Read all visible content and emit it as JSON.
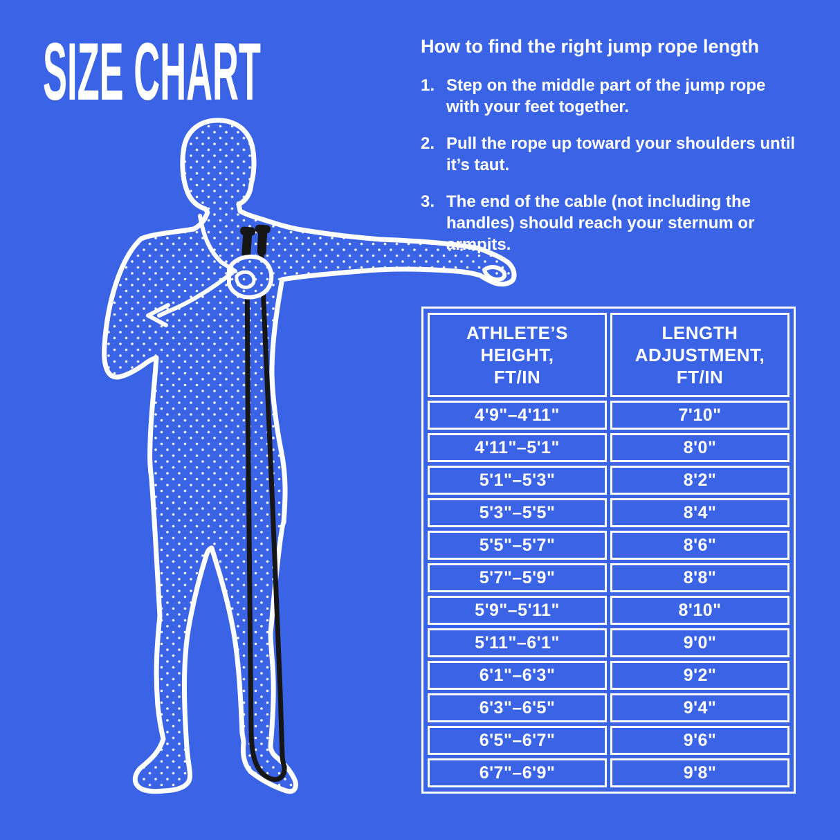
{
  "colors": {
    "background": "#3B63E6",
    "foreground": "#FFFFFF",
    "rope_black": "#161616"
  },
  "title": "SIZE CHART",
  "instructions": {
    "heading": "How to find the right jump rope length",
    "steps": [
      {
        "num": "1.",
        "text": "Step on the middle part of the jump rope\nwith your feet together."
      },
      {
        "num": "2.",
        "text": "Pull the rope up toward your shoulders until\nit’s taut."
      },
      {
        "num": "3.",
        "text": "The end of the cable (not including the\nhandles) should reach your sternum or\narmpits."
      }
    ]
  },
  "size_table": {
    "header_lines": [
      [
        "ATHLETE’S",
        "HEIGHT,",
        "FT/IN"
      ],
      [
        "LENGTH",
        "ADJUSTMENT,",
        "FT/IN"
      ]
    ]
  },
  "chart_data": {
    "type": "table",
    "title": "SIZE CHART",
    "columns": [
      "ATHLETE’S HEIGHT, FT/IN",
      "LENGTH ADJUSTMENT, FT/IN"
    ],
    "rows": [
      [
        "4'9\"–4'11\"",
        "7'10\""
      ],
      [
        "4'11\"–5'1\"",
        "8'0\""
      ],
      [
        "5'1\"–5'3\"",
        "8'2\""
      ],
      [
        "5'3\"–5'5\"",
        "8'4\""
      ],
      [
        "5'5\"–5'7\"",
        "8'6\""
      ],
      [
        "5'7\"–5'9\"",
        "8'8\""
      ],
      [
        "5'9\"–5'11\"",
        "8'10\""
      ],
      [
        "5'11\"–6'1\"",
        "9'0\""
      ],
      [
        "6'1\"–6'3\"",
        "9'2\""
      ],
      [
        "6'3\"–6'5\"",
        "9'4\""
      ],
      [
        "6'5\"–6'7\"",
        "9'6\""
      ],
      [
        "6'7\"–6'9\"",
        "9'8\""
      ]
    ]
  }
}
